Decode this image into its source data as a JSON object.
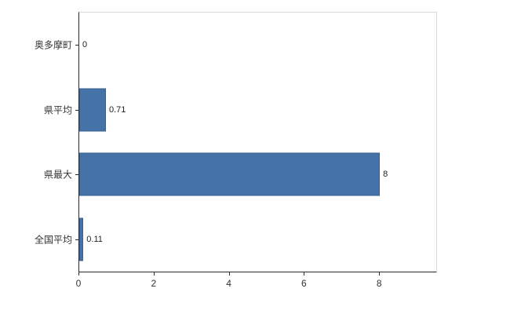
{
  "chart_data": {
    "type": "bar",
    "orientation": "horizontal",
    "title": "",
    "xlabel": "",
    "ylabel": "",
    "categories": [
      "奥多摩町",
      "県平均",
      "県最大",
      "全国平均"
    ],
    "values": [
      0,
      0.71,
      8,
      0.11
    ],
    "value_labels": [
      "0",
      "0.71",
      "8",
      "0.11"
    ],
    "x_ticks": [
      0,
      2,
      4,
      6,
      8
    ],
    "xlim": [
      0,
      9.5
    ],
    "grid": false,
    "legend": "none",
    "bar_color": "#4572a7",
    "bar_border_color": "#39618f",
    "axis_color": "#2b2b2b",
    "frame_color": "#d9d9d9"
  }
}
